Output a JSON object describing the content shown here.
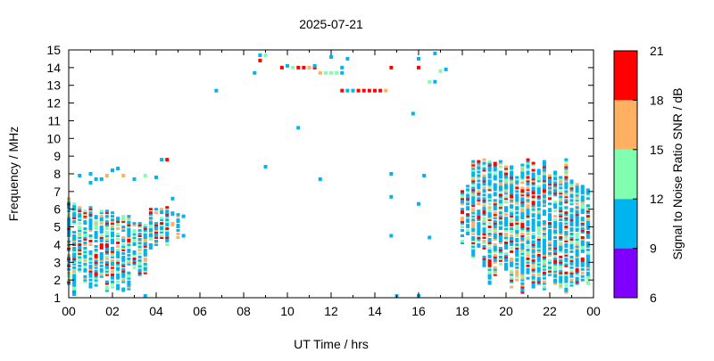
{
  "chart_data": {
    "type": "scatter",
    "title": "2025-07-21",
    "xlabel": "UT Time / hrs",
    "ylabel": "Frequency / MHz",
    "xlim": [
      0,
      24
    ],
    "ylim": [
      1,
      15
    ],
    "x_tick_labels": [
      "00",
      "02",
      "04",
      "06",
      "08",
      "10",
      "12",
      "14",
      "16",
      "18",
      "20",
      "22",
      "00"
    ],
    "y_tick_labels": [
      "1",
      "2",
      "3",
      "4",
      "5",
      "6",
      "7",
      "8",
      "9",
      "10",
      "11",
      "12",
      "13",
      "14",
      "15"
    ],
    "colorbar": {
      "label": "Signal to Noise Ratio SNR / dB",
      "range": [
        6,
        21
      ],
      "tick_labels": [
        "6",
        "9",
        "12",
        "15",
        "18",
        "21"
      ],
      "bands": [
        {
          "from": 6,
          "to": 9,
          "color": "#8000ff"
        },
        {
          "from": 9,
          "to": 12,
          "color": "#00b4f0"
        },
        {
          "from": 12,
          "to": 15,
          "color": "#80ffb0"
        },
        {
          "from": 15,
          "to": 18,
          "color": "#ffb060"
        },
        {
          "from": 18,
          "to": 21,
          "color": "#ff0000"
        }
      ]
    },
    "dense_columns_hour_fmin_fmax": [
      [
        0.0,
        1.8,
        6.6
      ],
      [
        0.25,
        1.2,
        6.3
      ],
      [
        0.5,
        2.5,
        6.1
      ],
      [
        0.75,
        1.9,
        6.0
      ],
      [
        1.0,
        1.6,
        6.1
      ],
      [
        1.25,
        1.7,
        5.6
      ],
      [
        1.5,
        2.2,
        6.0
      ],
      [
        1.75,
        1.4,
        5.9
      ],
      [
        2.0,
        1.6,
        5.8
      ],
      [
        2.25,
        1.4,
        5.7
      ],
      [
        2.5,
        1.4,
        5.6
      ],
      [
        2.75,
        1.5,
        5.6
      ],
      [
        3.0,
        2.7,
        5.2
      ],
      [
        3.25,
        2.3,
        5.2
      ],
      [
        3.5,
        2.4,
        5.1
      ],
      [
        3.75,
        3.8,
        6.0
      ],
      [
        4.0,
        4.0,
        6.0
      ],
      [
        4.25,
        4.4,
        6.0
      ],
      [
        4.5,
        4.0,
        6.1
      ],
      [
        4.75,
        5.1,
        5.9
      ],
      [
        5.0,
        4.3,
        5.7
      ],
      [
        18.0,
        4.1,
        7.0
      ],
      [
        18.25,
        4.5,
        7.3
      ],
      [
        18.5,
        3.3,
        8.8
      ],
      [
        18.75,
        3.7,
        8.8
      ],
      [
        19.0,
        2.8,
        8.8
      ],
      [
        19.25,
        1.8,
        8.8
      ],
      [
        19.5,
        2.3,
        8.6
      ],
      [
        19.75,
        2.9,
        8.8
      ],
      [
        20.0,
        2.6,
        8.4
      ],
      [
        20.25,
        1.6,
        8.4
      ],
      [
        20.5,
        2.0,
        7.9
      ],
      [
        20.75,
        1.3,
        8.5
      ],
      [
        21.0,
        2.1,
        8.8
      ],
      [
        21.25,
        1.6,
        8.6
      ],
      [
        21.5,
        1.7,
        8.2
      ],
      [
        21.75,
        1.5,
        8.7
      ],
      [
        22.0,
        2.1,
        7.9
      ],
      [
        22.25,
        1.7,
        8.1
      ],
      [
        22.5,
        1.6,
        7.8
      ],
      [
        22.75,
        1.3,
        8.8
      ],
      [
        23.0,
        1.6,
        7.6
      ],
      [
        23.25,
        1.8,
        7.4
      ],
      [
        23.5,
        1.9,
        7.3
      ],
      [
        23.75,
        1.8,
        7.2
      ]
    ],
    "sparse_points_hour_mhz_snr": [
      [
        0.5,
        7.9,
        10
      ],
      [
        1.0,
        8.0,
        10
      ],
      [
        1.0,
        7.5,
        10
      ],
      [
        1.25,
        7.7,
        10
      ],
      [
        1.5,
        7.7,
        10
      ],
      [
        1.75,
        7.9,
        16
      ],
      [
        2.0,
        8.2,
        10
      ],
      [
        2.25,
        8.3,
        10
      ],
      [
        2.5,
        7.9,
        16
      ],
      [
        3.0,
        7.7,
        10
      ],
      [
        3.5,
        7.9,
        13
      ],
      [
        4.0,
        7.8,
        10
      ],
      [
        4.25,
        8.8,
        10
      ],
      [
        4.5,
        8.8,
        19
      ],
      [
        4.75,
        6.6,
        10
      ],
      [
        5.25,
        5.6,
        10
      ],
      [
        5.25,
        4.5,
        10
      ],
      [
        0.25,
        1.2,
        10
      ],
      [
        3.5,
        1.1,
        10
      ],
      [
        1.5,
        4.9,
        10
      ],
      [
        6.75,
        12.7,
        10
      ],
      [
        8.5,
        13.7,
        10
      ],
      [
        8.75,
        14.7,
        10
      ],
      [
        8.75,
        14.4,
        19
      ],
      [
        9.0,
        14.7,
        13
      ],
      [
        9.0,
        8.4,
        10
      ],
      [
        9.75,
        14.0,
        19
      ],
      [
        10.0,
        14.1,
        10
      ],
      [
        10.25,
        14.0,
        13
      ],
      [
        10.5,
        14.0,
        19
      ],
      [
        10.75,
        14.0,
        19
      ],
      [
        11.0,
        14.0,
        16
      ],
      [
        11.25,
        14.0,
        19
      ],
      [
        11.25,
        14.1,
        10
      ],
      [
        10.5,
        10.6,
        10
      ],
      [
        11.5,
        7.7,
        10
      ],
      [
        11.5,
        13.7,
        16
      ],
      [
        11.75,
        13.7,
        13
      ],
      [
        12.0,
        13.7,
        13
      ],
      [
        12.25,
        13.7,
        13
      ],
      [
        12.0,
        14.6,
        10
      ],
      [
        12.5,
        14.0,
        10
      ],
      [
        12.5,
        13.7,
        10
      ],
      [
        12.75,
        14.5,
        10
      ],
      [
        12.5,
        12.7,
        19
      ],
      [
        12.75,
        12.7,
        10
      ],
      [
        13.0,
        12.7,
        10
      ],
      [
        13.25,
        12.7,
        19
      ],
      [
        13.5,
        12.7,
        19
      ],
      [
        13.75,
        12.7,
        19
      ],
      [
        14.0,
        12.7,
        19
      ],
      [
        14.25,
        12.7,
        19
      ],
      [
        14.5,
        12.7,
        16
      ],
      [
        14.75,
        14.0,
        19
      ],
      [
        14.75,
        8.0,
        10
      ],
      [
        14.75,
        6.7,
        10
      ],
      [
        14.75,
        4.5,
        10
      ],
      [
        15.0,
        1.1,
        10
      ],
      [
        15.75,
        11.4,
        10
      ],
      [
        16.0,
        14.5,
        10
      ],
      [
        16.0,
        14.0,
        19
      ],
      [
        16.0,
        6.3,
        10
      ],
      [
        16.0,
        1.1,
        10
      ],
      [
        16.25,
        7.9,
        10
      ],
      [
        16.5,
        13.2,
        13
      ],
      [
        16.5,
        4.4,
        10
      ],
      [
        16.75,
        13.2,
        10
      ],
      [
        16.75,
        14.8,
        10
      ],
      [
        17.0,
        13.8,
        13
      ],
      [
        17.25,
        13.9,
        10
      ]
    ]
  }
}
